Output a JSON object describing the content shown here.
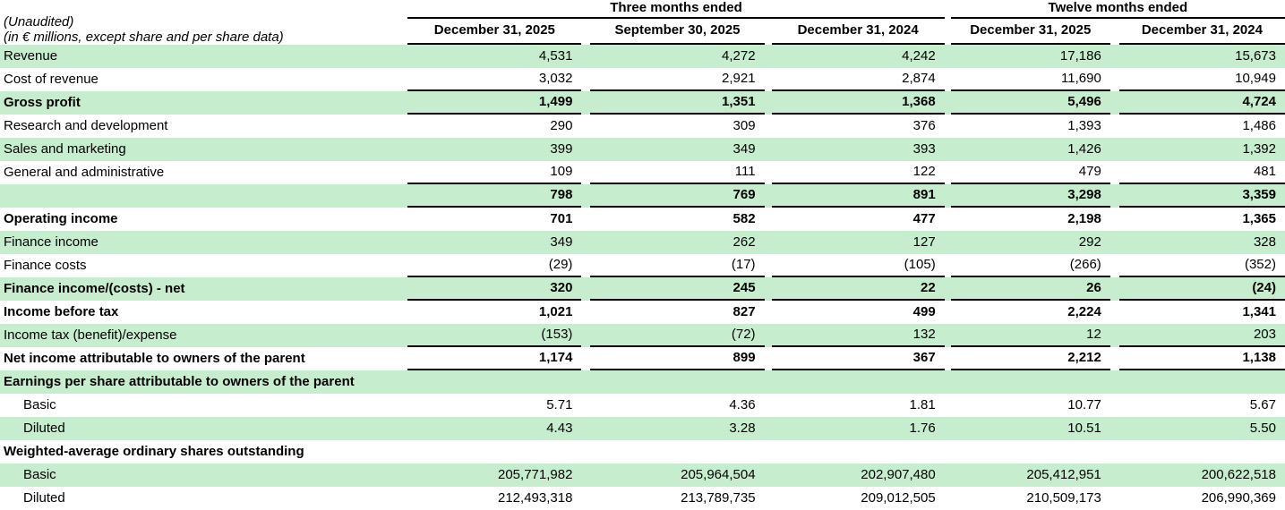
{
  "title_block": {
    "line1": "(Unaudited)",
    "line2": "(in € millions, except share and per share data)"
  },
  "column_groups": [
    {
      "label": "Three months ended"
    },
    {
      "label": "Twelve months ended"
    }
  ],
  "column_headers": [
    "December 31, 2025",
    "September 30, 2025",
    "December 31, 2024",
    "December 31, 2025",
    "December 31, 2024"
  ],
  "rows": [
    {
      "label": "Revenue",
      "values": [
        "4,531",
        "4,272",
        "4,242",
        "17,186",
        "15,673"
      ],
      "shaded": true,
      "bold": false,
      "underline": false,
      "indent": false
    },
    {
      "label": "Cost of revenue",
      "values": [
        "3,032",
        "2,921",
        "2,874",
        "11,690",
        "10,949"
      ],
      "shaded": false,
      "bold": false,
      "underline": true,
      "indent": false
    },
    {
      "label": "Gross profit",
      "values": [
        "1,499",
        "1,351",
        "1,368",
        "5,496",
        "4,724"
      ],
      "shaded": true,
      "bold": true,
      "underline": true,
      "indent": false
    },
    {
      "label": "Research and development",
      "values": [
        "290",
        "309",
        "376",
        "1,393",
        "1,486"
      ],
      "shaded": false,
      "bold": false,
      "underline": false,
      "indent": false
    },
    {
      "label": "Sales and marketing",
      "values": [
        "399",
        "349",
        "393",
        "1,426",
        "1,392"
      ],
      "shaded": true,
      "bold": false,
      "underline": false,
      "indent": false
    },
    {
      "label": "General and administrative",
      "values": [
        "109",
        "111",
        "122",
        "479",
        "481"
      ],
      "shaded": false,
      "bold": false,
      "underline": true,
      "indent": false
    },
    {
      "label": "",
      "values": [
        "798",
        "769",
        "891",
        "3,298",
        "3,359"
      ],
      "shaded": true,
      "bold": true,
      "underline": true,
      "indent": false
    },
    {
      "label": "Operating income",
      "values": [
        "701",
        "582",
        "477",
        "2,198",
        "1,365"
      ],
      "shaded": false,
      "bold": true,
      "underline": false,
      "indent": false
    },
    {
      "label": "Finance income",
      "values": [
        "349",
        "262",
        "127",
        "292",
        "328"
      ],
      "shaded": true,
      "bold": false,
      "underline": false,
      "indent": false
    },
    {
      "label": "Finance costs",
      "values": [
        "(29)",
        "(17)",
        "(105)",
        "(266)",
        "(352)"
      ],
      "shaded": false,
      "bold": false,
      "underline": true,
      "indent": false
    },
    {
      "label": "Finance income/(costs) - net",
      "values": [
        "320",
        "245",
        "22",
        "26",
        "(24)"
      ],
      "shaded": true,
      "bold": true,
      "underline": true,
      "indent": false
    },
    {
      "label": "Income before tax",
      "values": [
        "1,021",
        "827",
        "499",
        "2,224",
        "1,341"
      ],
      "shaded": false,
      "bold": true,
      "underline": false,
      "indent": false
    },
    {
      "label": "Income tax (benefit)/expense",
      "values": [
        "(153)",
        "(72)",
        "132",
        "12",
        "203"
      ],
      "shaded": true,
      "bold": false,
      "underline": true,
      "indent": false
    },
    {
      "label": "Net income attributable to owners of the parent",
      "values": [
        "1,174",
        "899",
        "367",
        "2,212",
        "1,138"
      ],
      "shaded": false,
      "bold": true,
      "underline": true,
      "indent": false
    },
    {
      "label": "Earnings per share attributable to owners of the parent",
      "values": [],
      "shaded": true,
      "bold": true,
      "underline": false,
      "indent": false
    },
    {
      "label": "Basic",
      "values": [
        "5.71",
        "4.36",
        "1.81",
        "10.77",
        "5.67"
      ],
      "shaded": false,
      "bold": false,
      "underline": false,
      "indent": true
    },
    {
      "label": "Diluted",
      "values": [
        "4.43",
        "3.28",
        "1.76",
        "10.51",
        "5.50"
      ],
      "shaded": true,
      "bold": false,
      "underline": false,
      "indent": true
    },
    {
      "label": "Weighted-average ordinary shares outstanding",
      "values": [],
      "shaded": false,
      "bold": true,
      "underline": false,
      "indent": false
    },
    {
      "label": "Basic",
      "values": [
        "205,771,982",
        "205,964,504",
        "202,907,480",
        "205,412,951",
        "200,622,518"
      ],
      "shaded": true,
      "bold": false,
      "underline": false,
      "indent": true
    },
    {
      "label": "Diluted",
      "values": [
        "212,493,318",
        "213,789,735",
        "209,012,505",
        "210,509,173",
        "206,990,369"
      ],
      "shaded": false,
      "bold": false,
      "underline": false,
      "indent": true
    }
  ],
  "colors": {
    "stripe_green": "#c6edce",
    "rule_black": "#000000",
    "text_black": "#000000",
    "background": "#ffffff"
  }
}
